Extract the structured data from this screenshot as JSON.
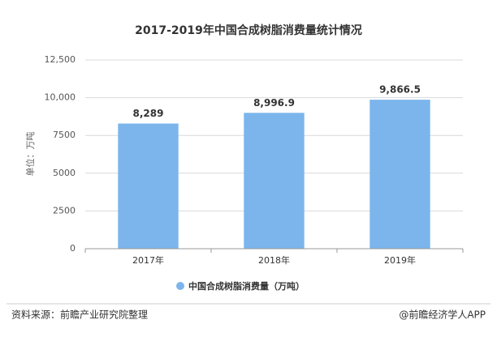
{
  "chart_data": {
    "type": "bar",
    "title": "2017-2019年中国合成树脂消费量统计情况",
    "y_label": "单位：万吨",
    "categories": [
      "2017年",
      "2018年",
      "2019年"
    ],
    "series": [
      {
        "name": "中国合成树脂消费量（万吨）",
        "color": "#7cb5ec",
        "values": [
          8289,
          8996.9,
          9866.5
        ],
        "value_labels": [
          "8,289",
          "8,996.9",
          "9,866.5"
        ]
      }
    ],
    "ylim": [
      0,
      12500
    ],
    "yticks": [
      0,
      2500,
      5000,
      7500,
      {
        "value": 10000,
        "label": "10,000"
      },
      {
        "value": 12500,
        "label": "12,500"
      }
    ],
    "grid": true,
    "legend": "bottom",
    "source": "资料来源：前瞻产业研究院整理",
    "credit": "@前瞻经济学人APP"
  }
}
